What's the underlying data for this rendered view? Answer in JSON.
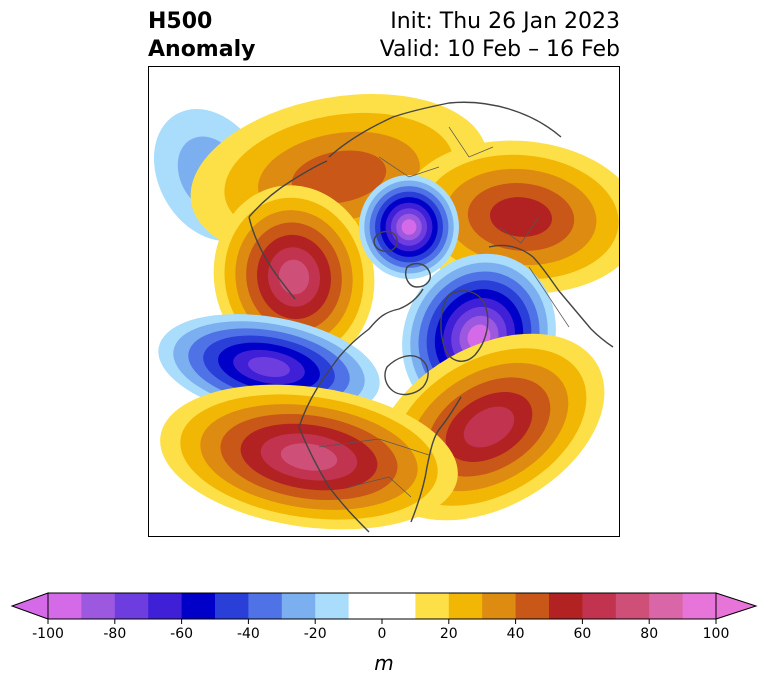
{
  "title": {
    "left_line1": "H500",
    "left_line2": "Anomaly",
    "right_line1": "Init: Thu 26 Jan 2023",
    "right_line2": "Valid: 10 Feb – 16 Feb"
  },
  "colorbar": {
    "label": "m",
    "range": [
      -100,
      100
    ],
    "step": 10,
    "ticks": [
      "-100",
      "-80",
      "-60",
      "-40",
      "-20",
      "0",
      "20",
      "40",
      "60",
      "80",
      "100"
    ],
    "extend": "both",
    "colors": [
      "#d46ae8",
      "#9d58e0",
      "#6d3de0",
      "#3f20d6",
      "#0000c8",
      "#2a3fd8",
      "#4f73e6",
      "#7bafef",
      "#aadcfb",
      "#ffffff",
      "#ffffff",
      "#fde047",
      "#f2b705",
      "#de8b12",
      "#c85718",
      "#b22222",
      "#c1334f",
      "#ce4f78",
      "#d966a6",
      "#e774d8"
    ]
  },
  "map": {
    "palette": {
      "neg_100": "#d46ae8",
      "neg_90": "#9d58e0",
      "neg_80": "#6d3de0",
      "neg_70": "#3f20d6",
      "neg_60": "#0000c8",
      "neg_50": "#2a3fd8",
      "neg_40": "#4f73e6",
      "neg_30": "#7bafef",
      "neg_20": "#aadcfb",
      "pos_10": "#fde047",
      "pos_20": "#f2b705",
      "pos_30": "#de8b12",
      "pos_40": "#c85718",
      "pos_50": "#b22222",
      "pos_60": "#c1334f",
      "pos_70": "#ce4f78"
    },
    "coastline_color": "#444444",
    "border_color": "#555555"
  }
}
